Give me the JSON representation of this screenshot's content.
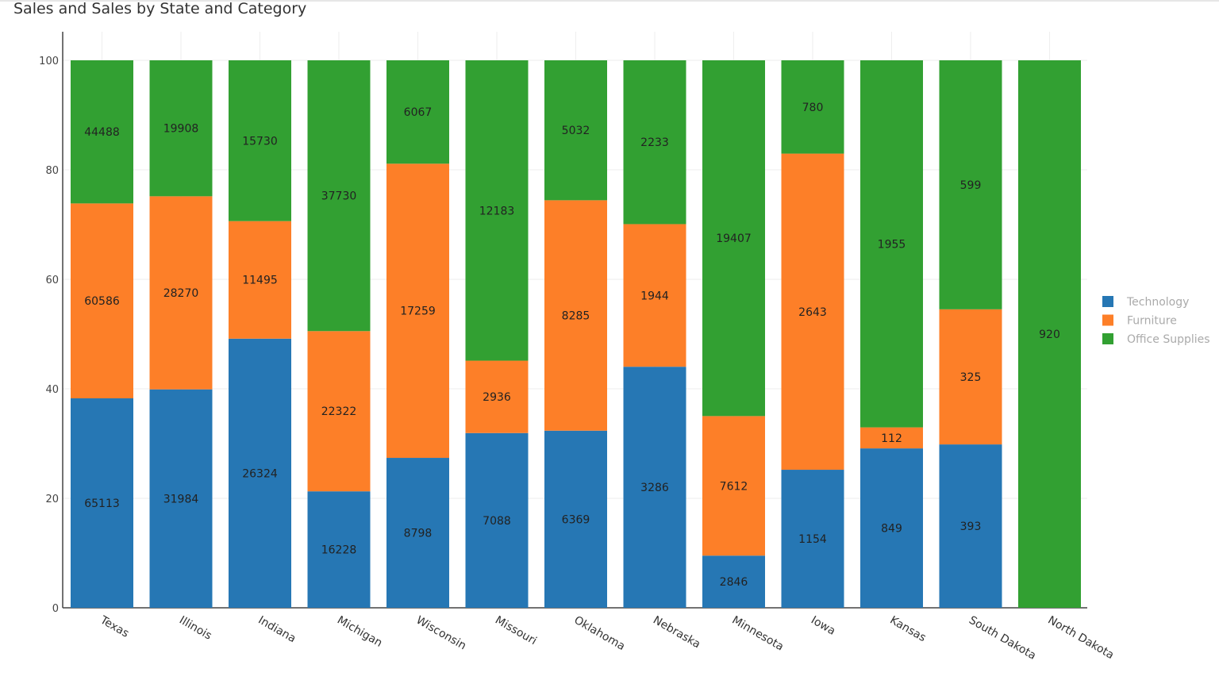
{
  "chart_data": {
    "type": "bar",
    "stacking": "percent",
    "title": "Sales and Sales by State and Category",
    "xlabel": "",
    "ylabel": "",
    "ylim": [
      0,
      100
    ],
    "yticks": [
      0,
      20,
      40,
      60,
      80,
      100
    ],
    "grid": true,
    "legend_position": "right",
    "categories": [
      "Texas",
      "Illinois",
      "Indiana",
      "Michigan",
      "Wisconsin",
      "Missouri",
      "Oklahoma",
      "Nebraska",
      "Minnesota",
      "Iowa",
      "Kansas",
      "South Dakota",
      "North Dakota"
    ],
    "series": [
      {
        "name": "Technology",
        "color": "#2677b4",
        "values": [
          65113,
          31984,
          26324,
          16228,
          8798,
          7088,
          6369,
          3286,
          2846,
          1154,
          849,
          393,
          0
        ]
      },
      {
        "name": "Furniture",
        "color": "#fd7f28",
        "values": [
          60586,
          28270,
          11495,
          22322,
          17259,
          2936,
          8285,
          1944,
          7612,
          2643,
          112,
          325,
          0
        ]
      },
      {
        "name": "Office Supplies",
        "color": "#32a032",
        "values": [
          44488,
          19908,
          15730,
          37730,
          6067,
          12183,
          5032,
          2233,
          19407,
          780,
          1955,
          599,
          920
        ]
      }
    ]
  }
}
